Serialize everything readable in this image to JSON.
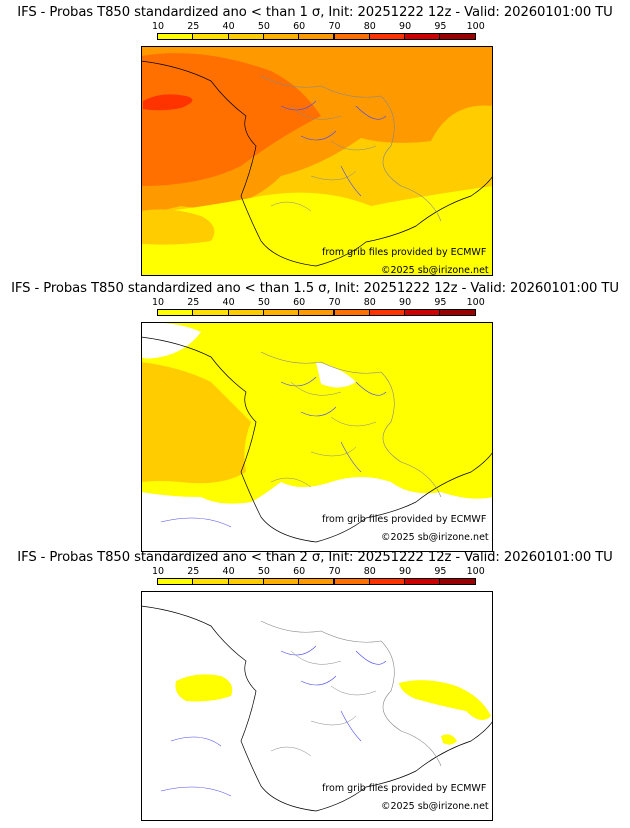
{
  "legend": {
    "labels": [
      "10",
      "25",
      "40",
      "50",
      "60",
      "70",
      "80",
      "90",
      "95",
      "100"
    ],
    "colors": [
      "#ffff00",
      "#ffe000",
      "#ffcc00",
      "#ffb000",
      "#ff9900",
      "#ff7000",
      "#ff3300",
      "#cc0000",
      "#990000",
      "#550000"
    ]
  },
  "panels": [
    {
      "title": "IFS - Probas T850  standardized ano < than 1 σ, Init: 20251222 12z - Valid: 20260101:00 TU",
      "credit_source": "from grib files provided by ECMWF",
      "credit_copyright": "©2025 sb@irizone.net",
      "fill": "high"
    },
    {
      "title": "IFS - Probas T850  standardized ano < than 1.5 σ, Init: 20251222 12z - Valid: 20260101:00 TU",
      "credit_source": "from grib files provided by ECMWF",
      "credit_copyright": "©2025 sb@irizone.net",
      "fill": "mid"
    },
    {
      "title": "IFS - Probas T850  standardized ano < than 2 σ, Init: 20251222 12z - Valid: 20260101:00 TU",
      "credit_source": "from grib files provided by ECMWF",
      "credit_copyright": "©2025 sb@irizone.net",
      "fill": "low"
    }
  ]
}
